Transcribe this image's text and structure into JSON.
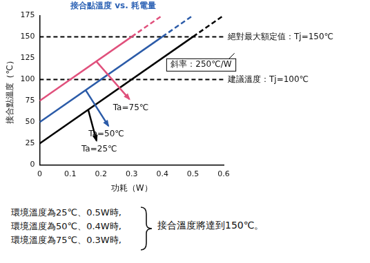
{
  "chart_data": {
    "type": "line",
    "title": "接合點溫度 vs. 耗電量",
    "x_label": "功耗（W）",
    "y_label": "接合點溫度（℃）",
    "xlim": [
      0,
      0.6
    ],
    "xticks": [
      0,
      0.1,
      0.2,
      0.3,
      0.4,
      0.5,
      0.6
    ],
    "ylim": [
      0,
      175
    ],
    "yticks": [
      0,
      25,
      50,
      75,
      100,
      125,
      150,
      175
    ],
    "grid": false,
    "series": [
      {
        "name": "Ta=25℃",
        "color": "#000000",
        "x": [
          0,
          0.5,
          0.6
        ],
        "values": [
          25,
          150,
          175
        ]
      },
      {
        "name": "Ta=50℃",
        "color": "#2b5ba8",
        "x": [
          0,
          0.4,
          0.5
        ],
        "values": [
          50,
          150,
          175
        ]
      },
      {
        "name": "Ta=75℃",
        "color": "#e0507c",
        "x": [
          0,
          0.3,
          0.4
        ],
        "values": [
          75,
          150,
          175
        ]
      }
    ],
    "reference_lines": [
      {
        "value": 150,
        "label": "絕對最大額定值：Tj=150℃",
        "line_style": "dashed"
      },
      {
        "value": 100,
        "label": "建議溫度：Tj=100℃",
        "line_style": "dashed"
      }
    ],
    "annotations": [
      {
        "text": "斜率：250℃/W"
      }
    ],
    "note": {
      "lines": [
        "環境溫度為25℃、0.5W時,",
        "環境溫度為50℃、0.4W時,",
        "環境溫度為75℃、0.3W時,"
      ],
      "conclusion": "接合溫度將達到150℃。"
    }
  }
}
